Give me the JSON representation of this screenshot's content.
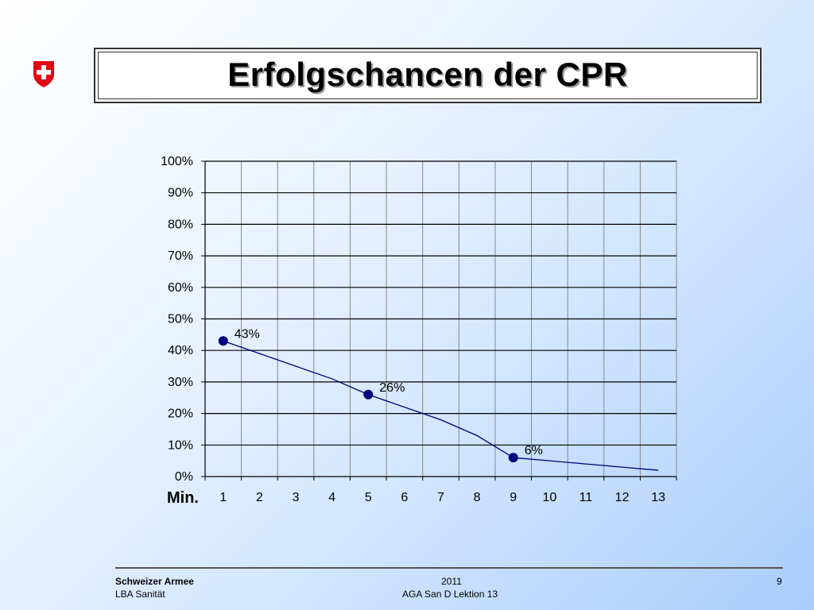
{
  "slide": {
    "title": "Erfolgschancen der CPR",
    "logo": "swiss-cross-shield-icon",
    "accent_color": "#e30613"
  },
  "chart_data": {
    "type": "line",
    "title": "",
    "xlabel": "Min.",
    "ylabel": "",
    "x": [
      1,
      2,
      3,
      4,
      5,
      6,
      7,
      8,
      9,
      10,
      11,
      12,
      13
    ],
    "x_tick_labels": [
      "1",
      "2",
      "3",
      "4",
      "5",
      "6",
      "7",
      "8",
      "9",
      "10",
      "11",
      "12",
      "13"
    ],
    "y_tick_labels": [
      "0%",
      "10%",
      "20%",
      "30%",
      "40%",
      "50%",
      "60%",
      "70%",
      "80%",
      "90%",
      "100%"
    ],
    "ylim": [
      0,
      100
    ],
    "grid": true,
    "series": [
      {
        "values": [
          43,
          39,
          35,
          31,
          26,
          22,
          18,
          13,
          6,
          5,
          4,
          3,
          2
        ],
        "color": "#000080",
        "markers": [
          {
            "x": 1,
            "y": 43,
            "label": "43%"
          },
          {
            "x": 5,
            "y": 26,
            "label": "26%"
          },
          {
            "x": 9,
            "y": 6,
            "label": "6%"
          }
        ]
      }
    ]
  },
  "footer": {
    "organization": "Schweizer Armee",
    "department": "LBA Sanität",
    "year": "2011",
    "lesson": "AGA San D Lektion 13",
    "page_number": "9"
  }
}
